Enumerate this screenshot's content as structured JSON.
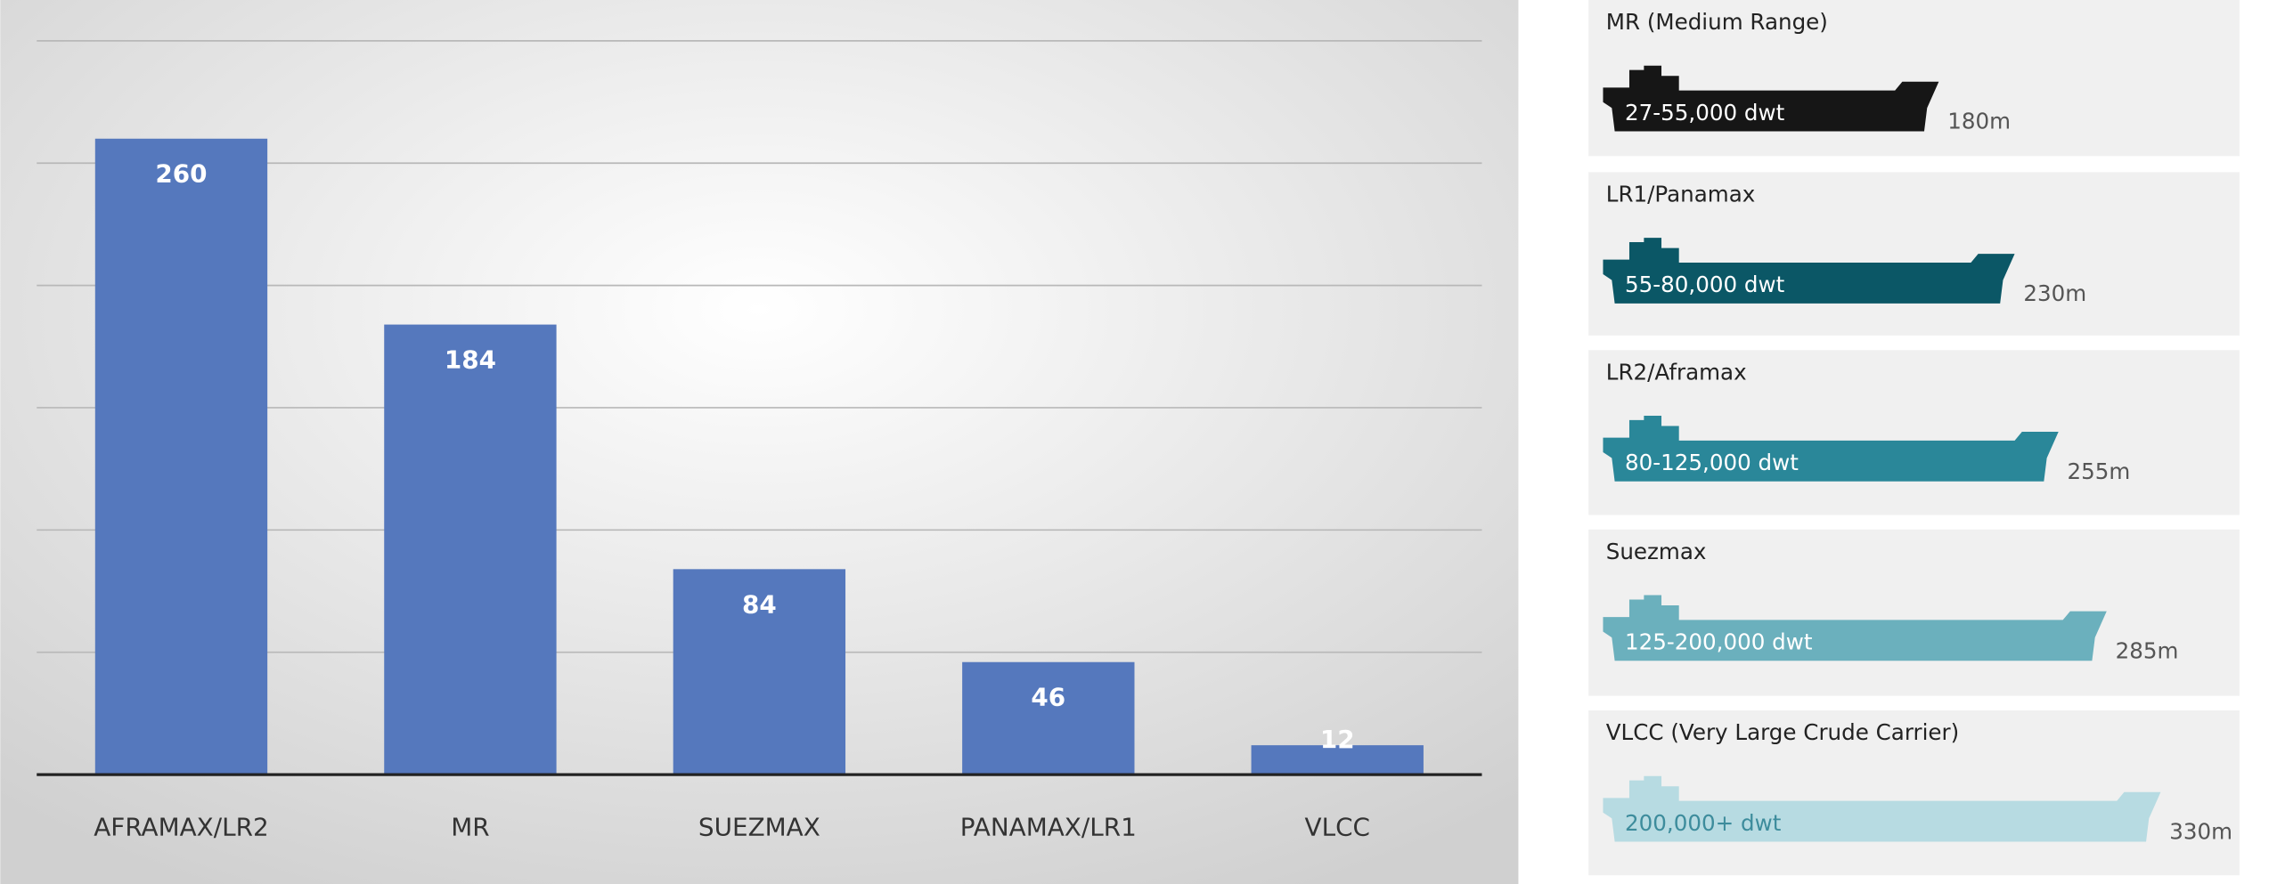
{
  "chart_data": {
    "type": "bar",
    "categories": [
      "AFRAMAX/LR2",
      "MR",
      "SUEZMAX",
      "PANAMAX/LR1",
      "VLCC"
    ],
    "values": [
      260,
      184,
      84,
      46,
      12
    ],
    "color": "#5578bd",
    "ylim": [
      0,
      300
    ],
    "yticks": [
      0,
      50,
      100,
      150,
      200,
      250,
      300
    ],
    "grid": true
  },
  "ship_classes": [
    {
      "name": "MR (Medium Range)",
      "dwt": "27-55,000 dwt",
      "length": "180m"
    },
    {
      "name": "LR1/Panamax",
      "dwt": "55-80,000 dwt",
      "length": "230m"
    },
    {
      "name": "LR2/Aframax",
      "dwt": "80-125,000 dwt",
      "length": "255m"
    },
    {
      "name": "Suezmax",
      "dwt": "125-200,000 dwt",
      "length": "285m"
    },
    {
      "name": "VLCC (Very Large Crude Carrier)",
      "dwt": "200,000+ dwt",
      "length": "330m"
    }
  ]
}
